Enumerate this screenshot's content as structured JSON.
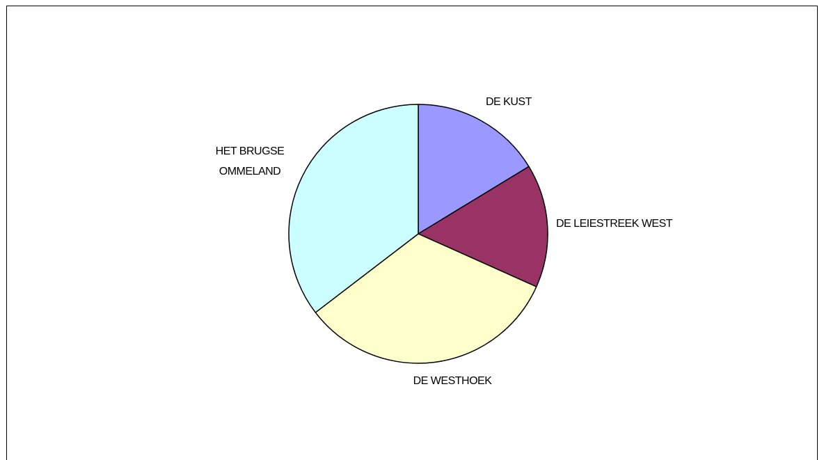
{
  "chart_data": {
    "type": "pie",
    "categories": [
      "DE KUST",
      "DE LEIESTREEK WEST",
      "DE WESTHOEK",
      "HET BRUGSE OMMELAND"
    ],
    "values": [
      16.3,
      15.4,
      32.9,
      35.4
    ],
    "colors": [
      "#9999ff",
      "#993366",
      "#ffffcc",
      "#ccffff"
    ]
  }
}
